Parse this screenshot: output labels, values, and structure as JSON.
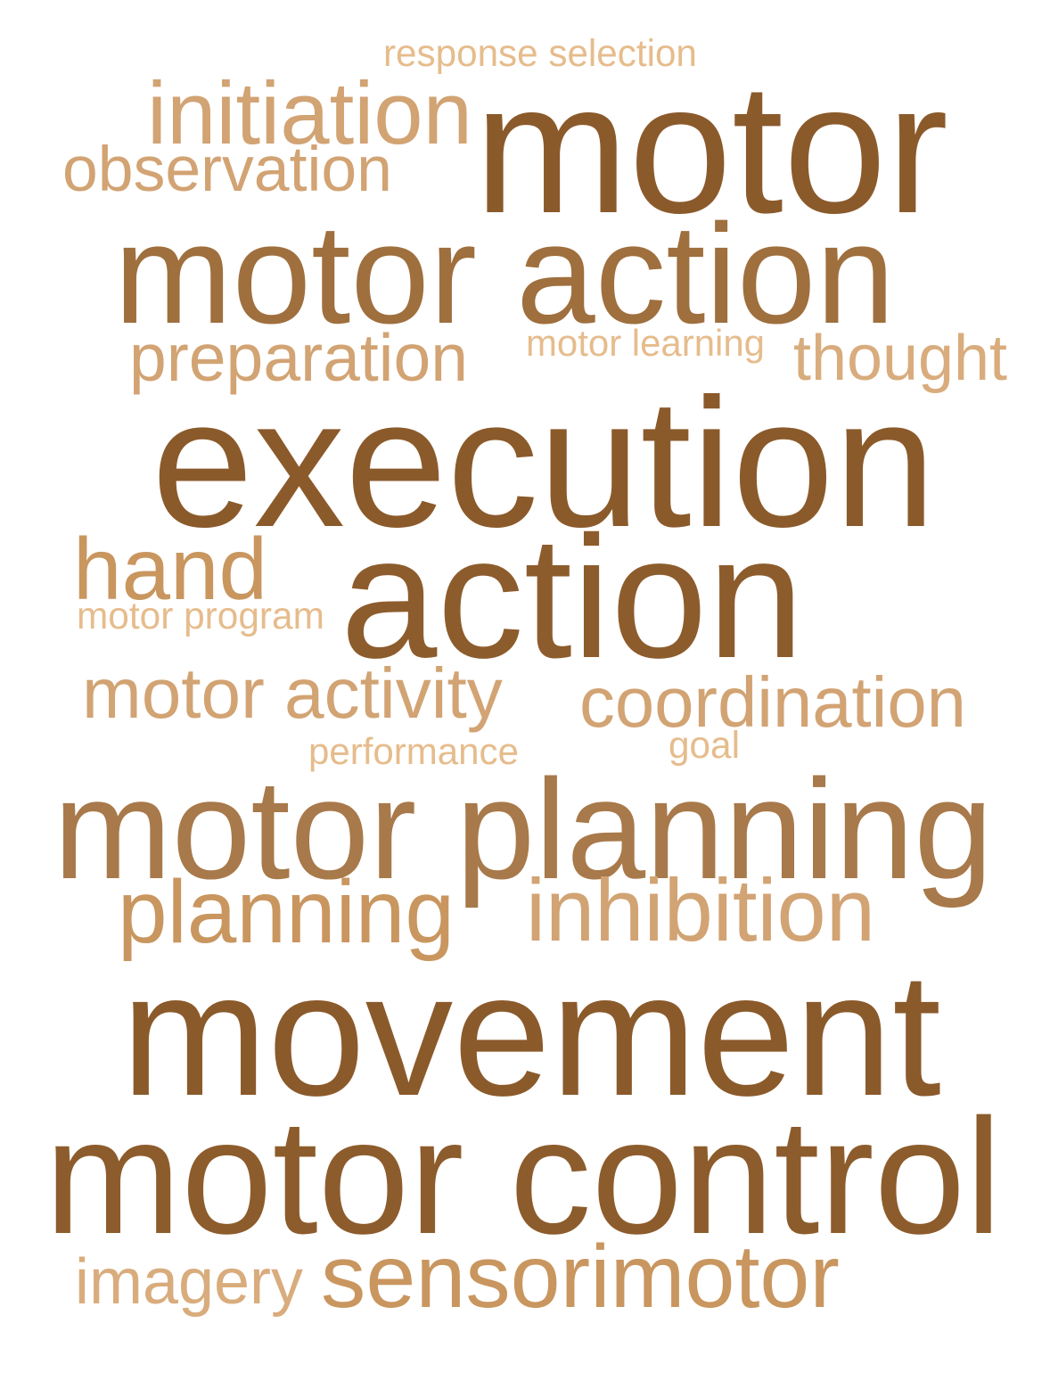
{
  "palette": {
    "background": "#ffffff",
    "dark": "#8b5a2b",
    "medium": "#a8794a",
    "light": "#d2a373",
    "lightest": "#e6bc8c"
  },
  "words": [
    {
      "id": "response-selection",
      "text": "response selection",
      "color": "#e6bc8c"
    },
    {
      "id": "initiation",
      "text": "initiation",
      "color": "#d2a373"
    },
    {
      "id": "motor",
      "text": "motor",
      "color": "#8b5a2b"
    },
    {
      "id": "observation",
      "text": "observation",
      "color": "#d2a373"
    },
    {
      "id": "motor-action",
      "text": "motor action",
      "color": "#9f6f3e"
    },
    {
      "id": "preparation",
      "text": "preparation",
      "color": "#d2a373"
    },
    {
      "id": "motor-learning",
      "text": "motor learning",
      "color": "#e6bc8c"
    },
    {
      "id": "thought",
      "text": "thought",
      "color": "#d9ac7d"
    },
    {
      "id": "execution",
      "text": "execution",
      "color": "#8b5a2b"
    },
    {
      "id": "hand",
      "text": "hand",
      "color": "#c9965f"
    },
    {
      "id": "action",
      "text": "action",
      "color": "#8d5c2c"
    },
    {
      "id": "motor-program",
      "text": "motor program",
      "color": "#e6bc8c"
    },
    {
      "id": "motor-activity",
      "text": "motor activity",
      "color": "#d2a373"
    },
    {
      "id": "coordination",
      "text": "coordination",
      "color": "#d2a373"
    },
    {
      "id": "performance",
      "text": "performance",
      "color": "#e6bc8c"
    },
    {
      "id": "goal",
      "text": "goal",
      "color": "#e6bc8c"
    },
    {
      "id": "motor-planning",
      "text": "motor planning",
      "color": "#a8794a"
    },
    {
      "id": "planning",
      "text": "planning",
      "color": "#c9965f"
    },
    {
      "id": "inhibition",
      "text": "inhibition",
      "color": "#d2a373"
    },
    {
      "id": "movement",
      "text": "movement",
      "color": "#8b5a2b"
    },
    {
      "id": "motor-control",
      "text": "motor control",
      "color": "#8d5c2c"
    },
    {
      "id": "imagery",
      "text": "imagery",
      "color": "#d9ac7d"
    },
    {
      "id": "sensorimotor",
      "text": "sensorimotor",
      "color": "#c9965f"
    }
  ]
}
